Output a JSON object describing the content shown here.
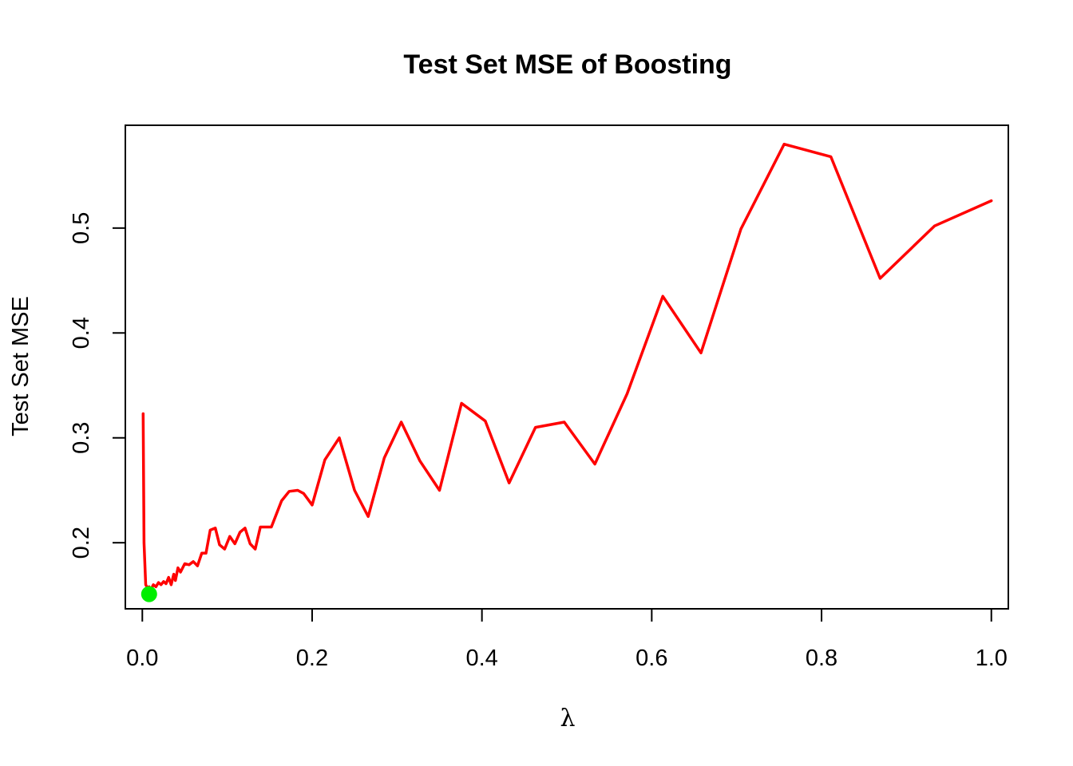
{
  "chart_data": {
    "type": "line",
    "title": "Test Set MSE of Boosting",
    "xlabel": "λ",
    "ylabel": "Test Set MSE",
    "xlim": [
      -0.02,
      1.02
    ],
    "ylim": [
      0.137,
      0.598
    ],
    "x_ticks": [
      "0.0",
      "0.2",
      "0.4",
      "0.6",
      "0.8",
      "1.0"
    ],
    "y_ticks": [
      "0.2",
      "0.3",
      "0.4",
      "0.5"
    ],
    "grid": false,
    "legend": "none",
    "series": [
      {
        "color": "#ff0000",
        "x": [
          0.001,
          0.002,
          0.004,
          0.006,
          0.008,
          0.01,
          0.013,
          0.016,
          0.019,
          0.022,
          0.025,
          0.028,
          0.031,
          0.034,
          0.037,
          0.039,
          0.042,
          0.045,
          0.05,
          0.055,
          0.06,
          0.065,
          0.07,
          0.075,
          0.08,
          0.086,
          0.091,
          0.097,
          0.103,
          0.109,
          0.115,
          0.121,
          0.127,
          0.133,
          0.139,
          0.145,
          0.152,
          0.164,
          0.173,
          0.183,
          0.19,
          0.2,
          0.215,
          0.232,
          0.25,
          0.266,
          0.285,
          0.305,
          0.327,
          0.35,
          0.376,
          0.404,
          0.432,
          0.463,
          0.497,
          0.533,
          0.571,
          0.613,
          0.658,
          0.705,
          0.756,
          0.811,
          0.869,
          0.933,
          1.0
        ],
        "y": [
          0.323,
          0.2,
          0.16,
          0.157,
          0.158,
          0.155,
          0.16,
          0.158,
          0.162,
          0.16,
          0.163,
          0.161,
          0.167,
          0.16,
          0.17,
          0.164,
          0.176,
          0.172,
          0.18,
          0.179,
          0.182,
          0.178,
          0.19,
          0.19,
          0.212,
          0.214,
          0.198,
          0.194,
          0.206,
          0.199,
          0.21,
          0.214,
          0.199,
          0.194,
          0.215,
          0.215,
          0.215,
          0.24,
          0.249,
          0.25,
          0.247,
          0.236,
          0.279,
          0.3,
          0.25,
          0.225,
          0.281,
          0.315,
          0.278,
          0.25,
          0.333,
          0.316,
          0.257,
          0.31,
          0.315,
          0.275,
          0.342,
          0.435,
          0.381,
          0.499,
          0.58,
          0.568,
          0.452,
          0.502,
          0.526
        ]
      }
    ],
    "highlight_point": {
      "x": 0.008,
      "y": 0.151,
      "color": "#00ee00"
    }
  }
}
